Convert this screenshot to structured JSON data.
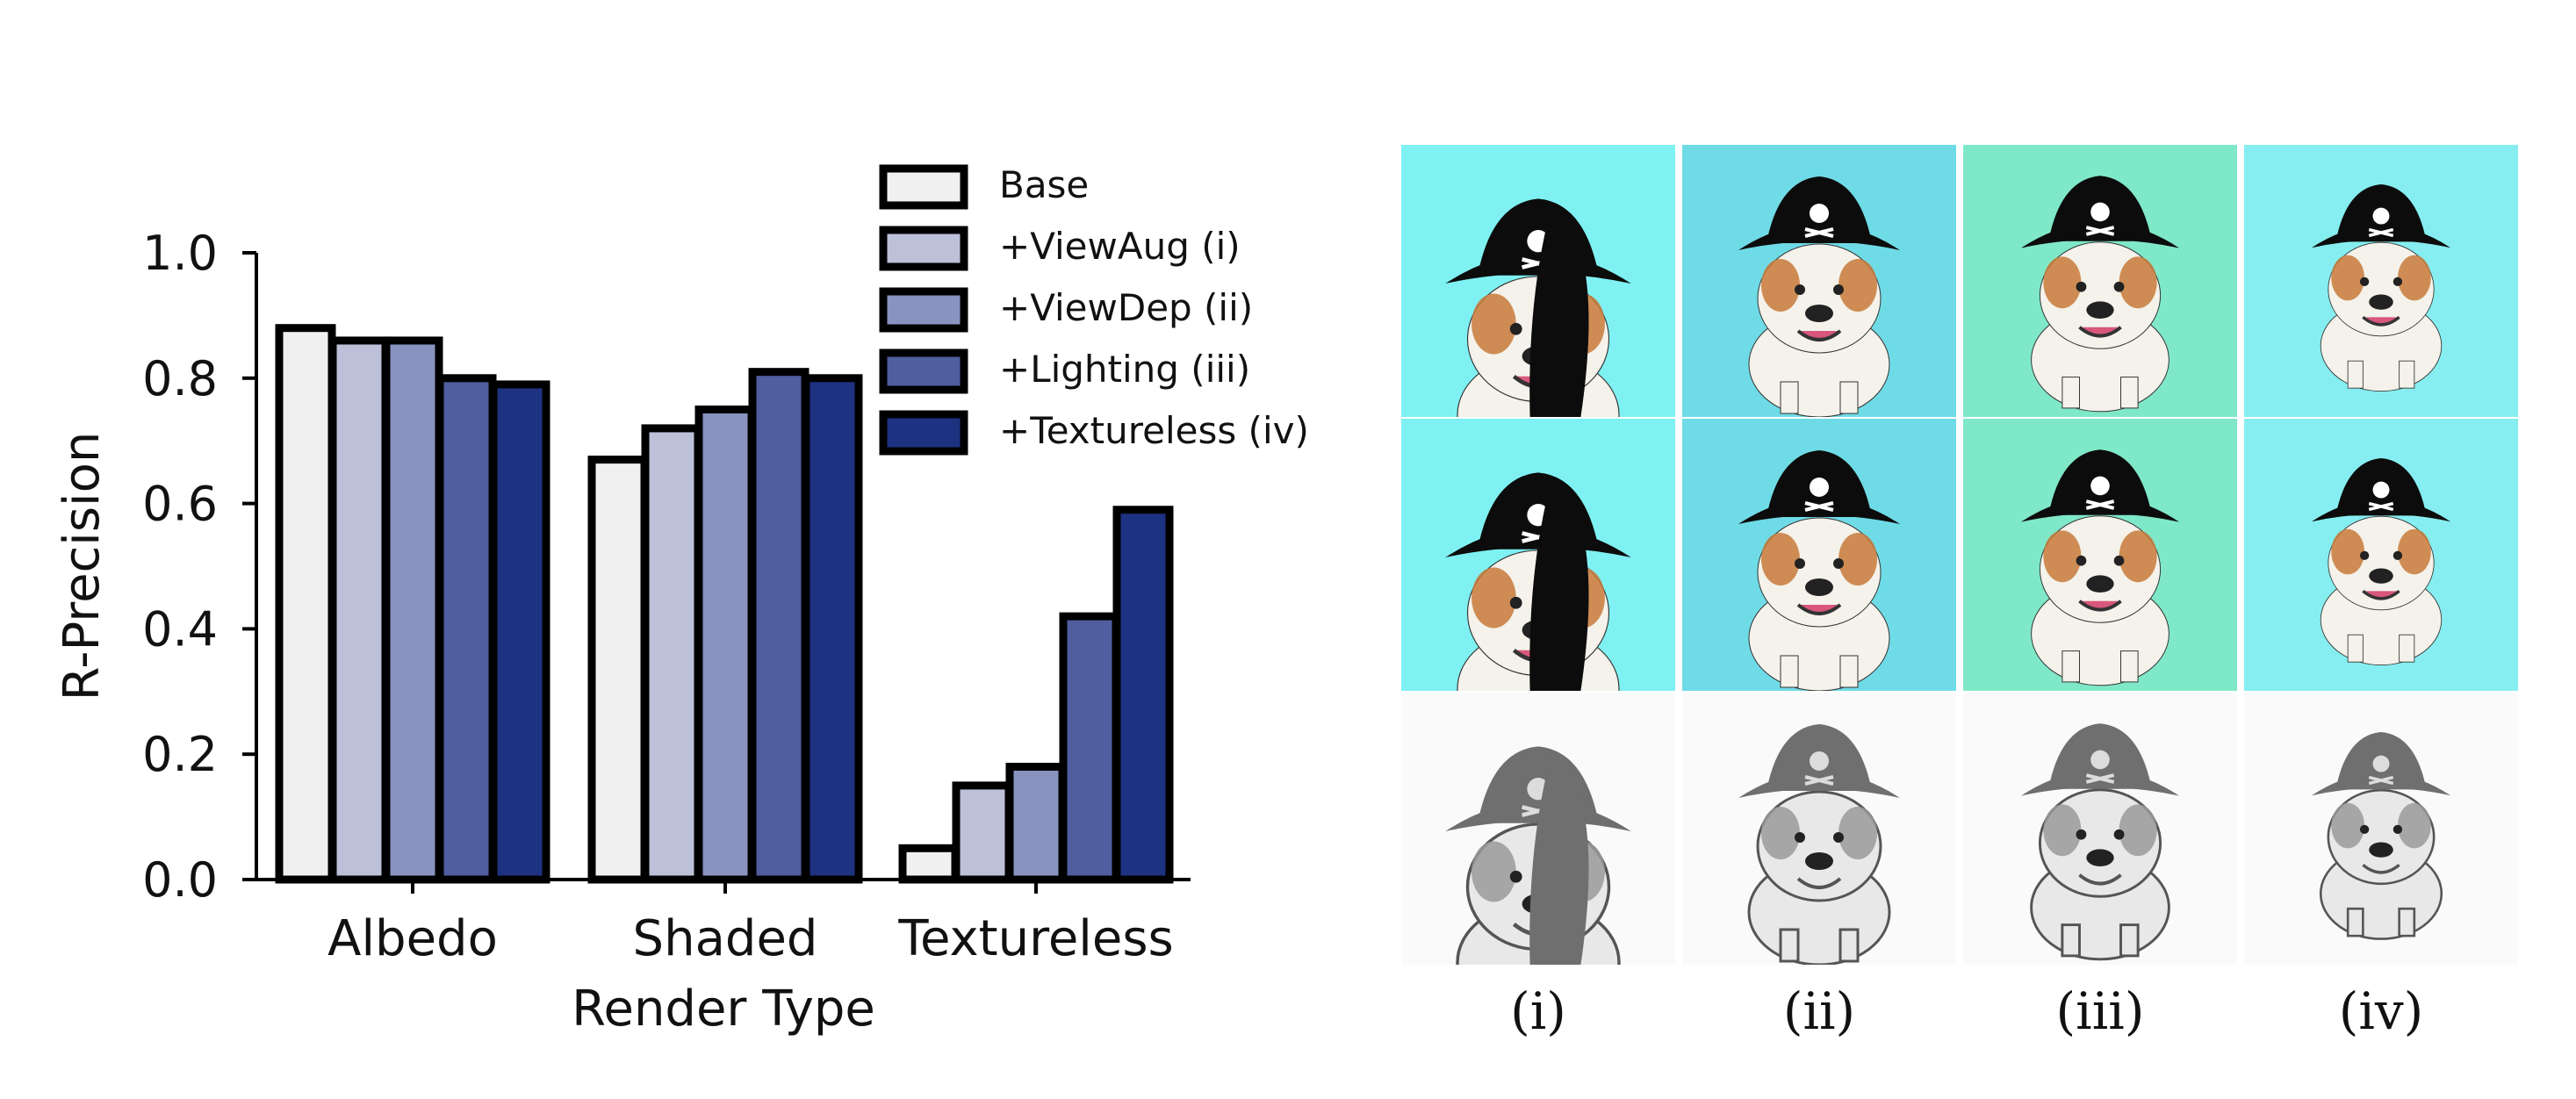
{
  "chart_data": {
    "type": "bar",
    "xlabel": "Render Type",
    "ylabel": "R-Precision",
    "categories": [
      "Albedo",
      "Shaded",
      "Textureless"
    ],
    "ylim": [
      0,
      1.0
    ],
    "yticks": [
      "0.0",
      "0.2",
      "0.4",
      "0.6",
      "0.8",
      "1.0"
    ],
    "legend_position": "top-right",
    "series": [
      {
        "name": "Base",
        "color": "#f0f0f0",
        "values": [
          0.88,
          0.67,
          0.05
        ]
      },
      {
        "name": "+ViewAug (i)",
        "color": "#bcc0d8",
        "values": [
          0.86,
          0.72,
          0.15
        ]
      },
      {
        "name": "+ViewDep (ii)",
        "color": "#8993bf",
        "values": [
          0.86,
          0.75,
          0.18
        ]
      },
      {
        "name": "+Lighting (iii)",
        "color": "#4f5e9e",
        "values": [
          0.8,
          0.81,
          0.42
        ]
      },
      {
        "name": "+Textureless (iv)",
        "color": "#1e3282",
        "values": [
          0.79,
          0.8,
          0.59
        ]
      }
    ]
  },
  "image_grid": {
    "columns": [
      "(i)",
      "(ii)",
      "(iii)",
      "(iv)"
    ],
    "rows": [
      "albedo-render",
      "shaded-render",
      "textureless-render"
    ],
    "background_colors": [
      "#7ff1f3",
      "#6fdbe6",
      "#7fe8c8",
      "#86eef0"
    ]
  }
}
